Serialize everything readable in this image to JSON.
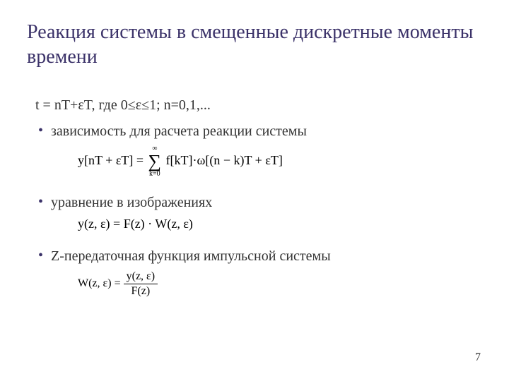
{
  "colors": {
    "title": "#3b3269",
    "bullet": "#3b3269",
    "body_text": "#333333",
    "equation_text": "#000000",
    "background": "#ffffff"
  },
  "typography": {
    "family": "Times New Roman",
    "title_size_pt": 28,
    "body_size_pt": 20,
    "equation_size_pt": 18,
    "equation_small_size_pt": 16,
    "pagenum_size_pt": 16
  },
  "title": "Реакция системы в смещенные дискретные моменты времени",
  "subheading": "t = nT+εT, где  0≤ε≤1; n=0,1,...",
  "bullets": [
    "зависимость для расчета реакции системы",
    "уравнение в изображениях",
    "Z-передаточная функция импульсной системы"
  ],
  "equations": {
    "eq1": {
      "lhs": "y[nT + εT] = ",
      "sum_upper": "∞",
      "sum_lower": "k=0",
      "rhs": " f[kT]·ω[(n − k)T + εT]"
    },
    "eq2": "y(z, ε) = F(z) · W(z, ε)",
    "eq3": {
      "lhs": "W(z, ε) = ",
      "num": "y(z, ε)",
      "den": "F(z)"
    }
  },
  "page_number": "7"
}
